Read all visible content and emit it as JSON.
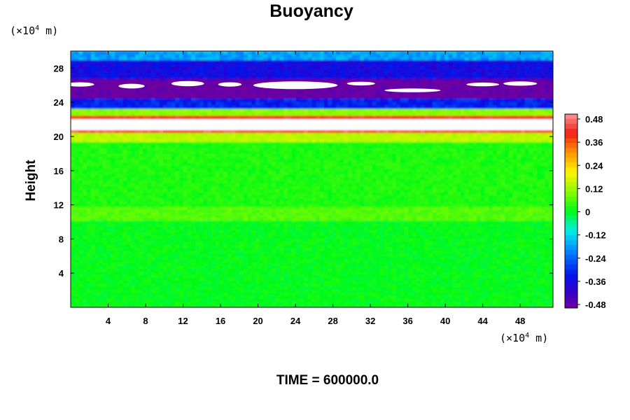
{
  "chart_data": {
    "type": "heatmap",
    "title": "Buoyancy",
    "ylabel": "Height",
    "xlabel": "",
    "x_unit": {
      "prefix": "(×10",
      "exp": "4",
      "suffix": " m)"
    },
    "y_unit": {
      "prefix": "(×10",
      "exp": "4",
      "suffix": " m)"
    },
    "xlim": [
      0,
      51.5
    ],
    "ylim": [
      0,
      30
    ],
    "x_ticks": [
      4,
      8,
      12,
      16,
      20,
      24,
      28,
      32,
      36,
      40,
      44,
      48
    ],
    "y_ticks": [
      4,
      8,
      12,
      16,
      20,
      24,
      28
    ],
    "colorbar": {
      "ticks": [
        "0.48",
        "0.36",
        "0.24",
        "0.12",
        "0",
        "-0.12",
        "-0.24",
        "-0.36",
        "-0.48"
      ],
      "range": [
        -0.5,
        0.5
      ]
    },
    "footer": "TIME = 600000.0",
    "field_layers": [
      {
        "y_from": 0,
        "y_to": 10.2,
        "value": 0.0
      },
      {
        "y_from": 10.2,
        "y_to": 11.8,
        "value": 0.06
      },
      {
        "y_from": 11.8,
        "y_to": 19.4,
        "value": 0.02
      },
      {
        "y_from": 19.4,
        "y_to": 20.5,
        "value": 0.14
      },
      {
        "y_from": 20.5,
        "y_to": 20.8,
        "value": 0.42
      },
      {
        "y_from": 20.8,
        "y_to": 22.1,
        "value": null
      },
      {
        "y_from": 22.1,
        "y_to": 22.5,
        "value": 0.4
      },
      {
        "y_from": 22.5,
        "y_to": 23.3,
        "value": 0.1
      },
      {
        "y_from": 23.3,
        "y_to": 24.5,
        "value": -0.32
      },
      {
        "y_from": 24.5,
        "y_to": 26.8,
        "value": -0.5
      },
      {
        "y_from": 26.8,
        "y_to": 29.0,
        "value": -0.36
      },
      {
        "y_from": 29.0,
        "y_to": 30.0,
        "value": -0.18
      }
    ]
  }
}
